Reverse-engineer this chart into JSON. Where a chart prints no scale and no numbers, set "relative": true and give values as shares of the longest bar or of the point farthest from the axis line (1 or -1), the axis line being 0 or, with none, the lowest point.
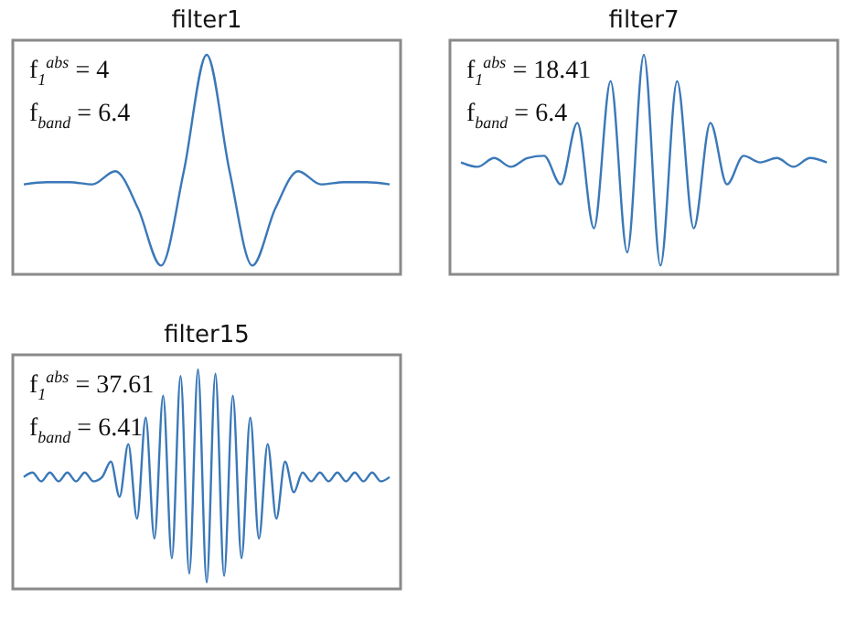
{
  "chart_data": [
    {
      "type": "line",
      "title": "filter1",
      "relative": true,
      "categories": [
        null,
        null,
        null,
        null,
        null,
        null,
        null,
        null,
        null,
        null,
        null,
        null,
        null,
        null,
        null,
        null,
        null
      ],
      "series": [
        {
          "color": "#3a78b8",
          "values": [
            0.41,
            0.42,
            0.42,
            0.41,
            0.47,
            0.3,
            0.04,
            0.47,
            1.0,
            0.47,
            0.04,
            0.3,
            0.47,
            0.41,
            0.42,
            0.42,
            0.41
          ]
        }
      ],
      "annotations": [
        "f$_{1}$$^{abs}$ = 4",
        "f$_{band}$ = 6.4"
      ]
    },
    {
      "type": "line",
      "title": "filter7",
      "relative": true,
      "categories": [
        null,
        null,
        null,
        null,
        null,
        null,
        null,
        null,
        null,
        null,
        null,
        null,
        null,
        null,
        null,
        null,
        null,
        null,
        null,
        null,
        null,
        null,
        null
      ],
      "series": [
        {
          "color": "#3a78b8",
          "values": [
            0.51,
            0.49,
            0.53,
            0.49,
            0.53,
            0.54,
            0.41,
            0.69,
            0.21,
            0.88,
            0.1,
            1.0,
            0.04,
            0.88,
            0.21,
            0.69,
            0.41,
            0.54,
            0.51,
            0.53,
            0.49,
            0.53,
            0.51
          ]
        }
      ],
      "annotations": [
        "f$_{1}$$^{abs}$ = 18.41",
        "f$_{band}$ = 6.4"
      ]
    },
    {
      "type": "line",
      "title": "filter15",
      "relative": true,
      "categories": [
        null,
        null,
        null,
        null,
        null,
        null,
        null,
        null,
        null,
        null,
        null,
        null,
        null,
        null,
        null,
        null,
        null,
        null,
        null,
        null,
        null,
        null,
        null,
        null,
        null,
        null,
        null,
        null,
        null,
        null,
        null,
        null,
        null,
        null,
        null,
        null,
        null,
        null,
        null,
        null,
        null,
        null,
        null
      ],
      "series": [
        {
          "color": "#3a78b8",
          "values": [
            0.51,
            0.53,
            0.49,
            0.53,
            0.49,
            0.53,
            0.49,
            0.53,
            0.49,
            0.51,
            0.58,
            0.42,
            0.66,
            0.32,
            0.78,
            0.23,
            0.88,
            0.14,
            0.97,
            0.07,
            1.0,
            0.03,
            0.98,
            0.06,
            0.88,
            0.14,
            0.78,
            0.23,
            0.66,
            0.32,
            0.58,
            0.44,
            0.53,
            0.49,
            0.53,
            0.49,
            0.53,
            0.49,
            0.53,
            0.49,
            0.53,
            0.49,
            0.51
          ]
        }
      ],
      "annotations": [
        "f$_{1}$$^{abs}$ = 37.61",
        "f$_{band}$ = 6.41"
      ]
    }
  ]
}
